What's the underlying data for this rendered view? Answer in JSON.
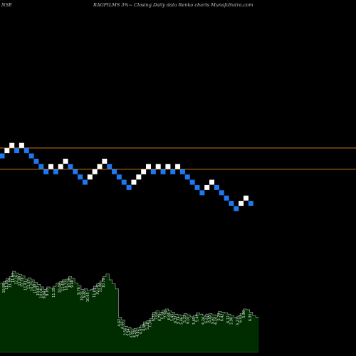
{
  "header": {
    "exchange": "NSE",
    "title": "RAGFILMS 3%~ Closing Daily data Renko charts MunafaSutra.com"
  },
  "colors": {
    "background": "#000000",
    "up_brick": "#ffffff",
    "down_brick": "#1e78f0",
    "reference_line": "#c8781e",
    "volume_fill": "#002d00",
    "volume_fill_highlight": "#005f00",
    "volume_line": "#9a9a9a"
  },
  "chart_data": [
    {
      "type": "renko",
      "brick_size_percent": 3,
      "bricks": [
        {
          "dir": "down",
          "level": 0
        },
        {
          "dir": "up",
          "level": 1
        },
        {
          "dir": "up",
          "level": 2
        },
        {
          "dir": "down",
          "level": 1
        },
        {
          "dir": "up",
          "level": 2
        },
        {
          "dir": "down",
          "level": 1
        },
        {
          "dir": "down",
          "level": 0
        },
        {
          "dir": "down",
          "level": -1
        },
        {
          "dir": "down",
          "level": -2
        },
        {
          "dir": "down",
          "level": -3
        },
        {
          "dir": "up",
          "level": -2
        },
        {
          "dir": "down",
          "level": -3
        },
        {
          "dir": "up",
          "level": -2
        },
        {
          "dir": "up",
          "level": -1
        },
        {
          "dir": "down",
          "level": -2
        },
        {
          "dir": "down",
          "level": -3
        },
        {
          "dir": "down",
          "level": -4
        },
        {
          "dir": "down",
          "level": -5
        },
        {
          "dir": "up",
          "level": -4
        },
        {
          "dir": "up",
          "level": -3
        },
        {
          "dir": "up",
          "level": -2
        },
        {
          "dir": "up",
          "level": -1
        },
        {
          "dir": "down",
          "level": -2
        },
        {
          "dir": "down",
          "level": -3
        },
        {
          "dir": "down",
          "level": -4
        },
        {
          "dir": "down",
          "level": -5
        },
        {
          "dir": "down",
          "level": -6
        },
        {
          "dir": "up",
          "level": -5
        },
        {
          "dir": "up",
          "level": -4
        },
        {
          "dir": "up",
          "level": -3
        },
        {
          "dir": "up",
          "level": -2
        },
        {
          "dir": "down",
          "level": -3
        },
        {
          "dir": "up",
          "level": -2
        },
        {
          "dir": "down",
          "level": -3
        },
        {
          "dir": "up",
          "level": -2
        },
        {
          "dir": "down",
          "level": -3
        },
        {
          "dir": "up",
          "level": -2
        },
        {
          "dir": "down",
          "level": -3
        },
        {
          "dir": "down",
          "level": -4
        },
        {
          "dir": "down",
          "level": -5
        },
        {
          "dir": "down",
          "level": -6
        },
        {
          "dir": "down",
          "level": -7
        },
        {
          "dir": "up",
          "level": -6
        },
        {
          "dir": "up",
          "level": -5
        },
        {
          "dir": "down",
          "level": -6
        },
        {
          "dir": "down",
          "level": -7
        },
        {
          "dir": "down",
          "level": -8
        },
        {
          "dir": "down",
          "level": -9
        },
        {
          "dir": "down",
          "level": -10
        },
        {
          "dir": "up",
          "level": -9
        },
        {
          "dir": "up",
          "level": -8
        },
        {
          "dir": "down",
          "level": -9
        }
      ],
      "reference_lines": [
        1.5,
        -2.5
      ]
    },
    {
      "type": "area",
      "series": [
        {
          "volumes": [
            10.6,
            10.8,
            11.3,
            11.6,
            12.4,
            12.1,
            11.9,
            11.7,
            11.2,
            11.4,
            11.1,
            10.7,
            10.4,
            10.0,
            9.6,
            10.0,
            9.8,
            10.1,
            10.6,
            10.8,
            11.1,
            11.2,
            11.6,
            11.3,
            10.6,
            10.2,
            9.6,
            9.7,
            9.4,
            9.6,
            10.1,
            10.5,
            10.9,
            11.6,
            12.0,
            11.1,
            10.5,
            9.7,
            5.3,
            4.9,
            3.9,
            3.8,
            3.5,
            3.6,
            3.7,
            4.1,
            4.6,
            4.8,
            5.1,
            6.1,
            6.3,
            6.1,
            6.4,
            6.6,
            6.3,
            6.1,
            5.8,
            5.7,
            5.6,
            5.9,
            5.7,
            5.4,
            5.6,
            6.0,
            5.8,
            5.6,
            5.8,
            5.9,
            5.7,
            5.6,
            6.2,
            6.1,
            6.0,
            5.8,
            5.6,
            5.3,
            5.5,
            5.9,
            6.6,
            6.5,
            6.1,
            5.6,
            5.3
          ]
        }
      ],
      "data_labels": [
        {
          "text": "10.98",
          "bar": 1,
          "color": "white"
        },
        {
          "text": "11.01",
          "bar": 2,
          "color": "white"
        },
        {
          "text": "11.83",
          "bar": 4,
          "color": "white"
        },
        {
          "text": "12.16",
          "bar": 5,
          "color": "white"
        },
        {
          "text": "11.99",
          "bar": 6,
          "color": "white"
        },
        {
          "text": "12.78",
          "bar": 7,
          "color": "white"
        },
        {
          "text": "11.41",
          "bar": 8,
          "color": "white"
        },
        {
          "text": "11.67",
          "bar": 9,
          "color": "white"
        },
        {
          "text": "11.40",
          "bar": 11,
          "color": "white"
        },
        {
          "text": "10.67",
          "bar": 12,
          "color": "white"
        },
        {
          "text": "10.04",
          "bar": 13,
          "color": "white"
        },
        {
          "text": "9.64",
          "bar": 14,
          "color": "white"
        },
        {
          "text": "9.70",
          "bar": 15,
          "color": "white"
        },
        {
          "text": "11.19",
          "bar": 17,
          "color": "white"
        },
        {
          "text": "10.48",
          "bar": 19,
          "color": "white"
        },
        {
          "text": "11.43",
          "bar": 20,
          "color": "white"
        },
        {
          "text": "10.20",
          "bar": 22,
          "color": "white"
        },
        {
          "text": "9.48",
          "bar": 23,
          "color": "white"
        },
        {
          "text": "9.76",
          "bar": 25,
          "color": "white"
        },
        {
          "text": "10.01",
          "bar": 26,
          "color": "white"
        },
        {
          "text": "9.40",
          "bar": 27,
          "color": "white"
        },
        {
          "text": "10.65",
          "bar": 28,
          "color": "white"
        },
        {
          "text": "11.01",
          "bar": 30,
          "color": "white"
        },
        {
          "text": "11.86",
          "bar": 32,
          "color": "white"
        },
        {
          "text": "10.79",
          "bar": 33,
          "color": "white"
        },
        {
          "text": "4.62",
          "bar": 38,
          "color": "white"
        },
        {
          "text": "4.60",
          "bar": 39,
          "color": "white"
        },
        {
          "text": "3.56",
          "bar": 40,
          "color": "white"
        },
        {
          "text": "3.54",
          "bar": 41,
          "color": "white"
        },
        {
          "text": "3.56",
          "bar": 42,
          "color": "white"
        },
        {
          "text": "4.29",
          "bar": 43,
          "color": "white"
        },
        {
          "text": "4.82",
          "bar": 44,
          "color": "white"
        },
        {
          "text": "4.67",
          "bar": 45,
          "color": "white"
        },
        {
          "text": "4.96",
          "bar": 46,
          "color": "white"
        },
        {
          "text": "5.28",
          "bar": 47,
          "color": "white"
        },
        {
          "text": "7.34",
          "bar": 48,
          "color": "white"
        },
        {
          "text": "6.31",
          "bar": 49,
          "color": "white"
        },
        {
          "text": "7.04",
          "bar": 50,
          "color": "white"
        },
        {
          "text": "6.79",
          "bar": 51,
          "color": "white"
        },
        {
          "text": "5.28",
          "bar": 52,
          "color": "white"
        },
        {
          "text": "7.34",
          "bar": 53,
          "color": "white"
        },
        {
          "text": "6.06",
          "bar": 54,
          "color": "white"
        },
        {
          "text": "5.45",
          "bar": 55,
          "color": "white"
        },
        {
          "text": "6.37",
          "bar": 56,
          "color": "white"
        },
        {
          "text": "5.74",
          "bar": 57,
          "color": "white"
        },
        {
          "text": "5.46",
          "bar": 58,
          "color": "white"
        },
        {
          "text": "5.33",
          "bar": 59,
          "color": "white"
        },
        {
          "text": "6.02",
          "bar": 60,
          "color": "white"
        },
        {
          "text": "5.65",
          "bar": 62,
          "color": "white"
        },
        {
          "text": "5.49",
          "bar": 63,
          "color": "white"
        },
        {
          "text": "6.24",
          "bar": 65,
          "color": "white"
        },
        {
          "text": "6.22",
          "bar": 66,
          "color": "white"
        },
        {
          "text": "6.05",
          "bar": 67,
          "color": "white"
        },
        {
          "text": "5.67",
          "bar": 68,
          "color": "white"
        },
        {
          "text": "6.14",
          "bar": 69,
          "color": "white"
        },
        {
          "text": "5.73",
          "bar": 70,
          "color": "white"
        },
        {
          "text": "6.42",
          "bar": 71,
          "color": "white"
        },
        {
          "text": "6.12",
          "bar": 73,
          "color": "white"
        },
        {
          "text": "5.90",
          "bar": 74,
          "color": "white"
        },
        {
          "text": "5.23",
          "bar": 76,
          "color": "white"
        },
        {
          "text": "6.43",
          "bar": 77,
          "color": "white"
        },
        {
          "text": "5.98",
          "bar": 78,
          "color": "white"
        },
        {
          "text": "6.35",
          "bar": 80,
          "color": "white"
        },
        {
          "text": "11.95",
          "bar": 3,
          "color": "green"
        },
        {
          "text": "10.25",
          "bar": 10,
          "color": "green"
        },
        {
          "text": "10.33",
          "bar": 21,
          "color": "green"
        },
        {
          "text": "10.74",
          "bar": 31,
          "color": "green"
        }
      ]
    }
  ]
}
